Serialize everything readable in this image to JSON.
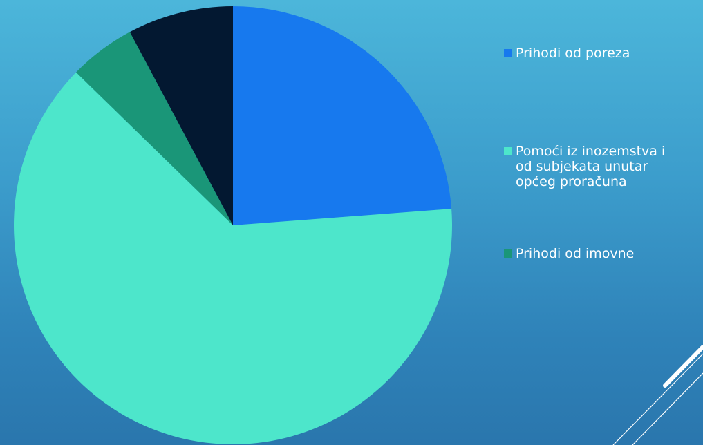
{
  "chart_data": {
    "type": "pie",
    "title": "",
    "slices": [
      {
        "label": "Prihodi od poreza",
        "value": 23.8,
        "color": "#1779ee"
      },
      {
        "label": "Pomoći iz inozemstva i\nod subjekata unutar\nopćeg proračuna",
        "value": 63.5,
        "color": "#4de6cb"
      },
      {
        "label": "Prihodi od imovne",
        "value": 4.9,
        "color": "#1a9678"
      },
      {
        "label": "",
        "value": 7.8,
        "color": "#031831"
      }
    ],
    "legend_position": "right",
    "start_angle_deg": 0,
    "direction": "clockwise"
  },
  "legend": [
    {
      "label": "Prihodi od poreza",
      "color": "#1779ee"
    },
    {
      "label": "Pomoći iz inozemstva i\nod subjekata unutar\nopćeg proračuna",
      "color": "#4de6cb"
    },
    {
      "label": "Prihodi od imovne",
      "color": "#1a9678"
    }
  ],
  "decoration": {
    "line_color": "#ffffff"
  }
}
